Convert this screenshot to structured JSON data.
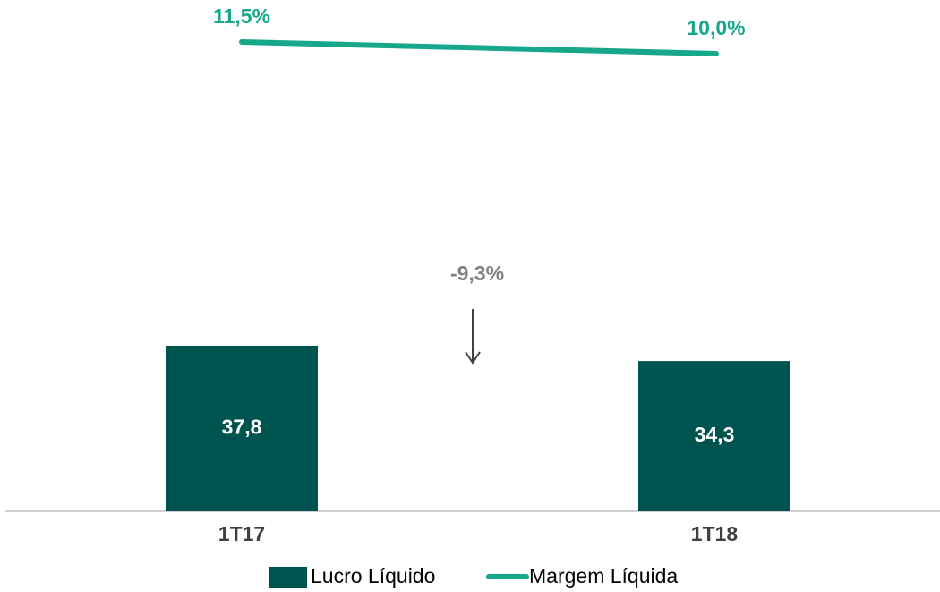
{
  "chart_data": {
    "type": "bar",
    "categories": [
      "1T17",
      "1T18"
    ],
    "series": [
      {
        "name": "Lucro Líquido",
        "type": "bar",
        "color": "#005450",
        "values": [
          37.8,
          34.3
        ],
        "value_labels": [
          "37,8",
          "34,3"
        ]
      },
      {
        "name": "Margem Líquida",
        "type": "line",
        "axis": "y2",
        "color": "#17a88c",
        "values": [
          11.5,
          10.0
        ],
        "value_labels": [
          "11,5%",
          "10,0%"
        ]
      }
    ],
    "ylim": [
      0,
      115
    ],
    "y2lim": [
      -49,
      16
    ],
    "annotations": [
      "-9,3%"
    ],
    "legend": "bottom"
  }
}
